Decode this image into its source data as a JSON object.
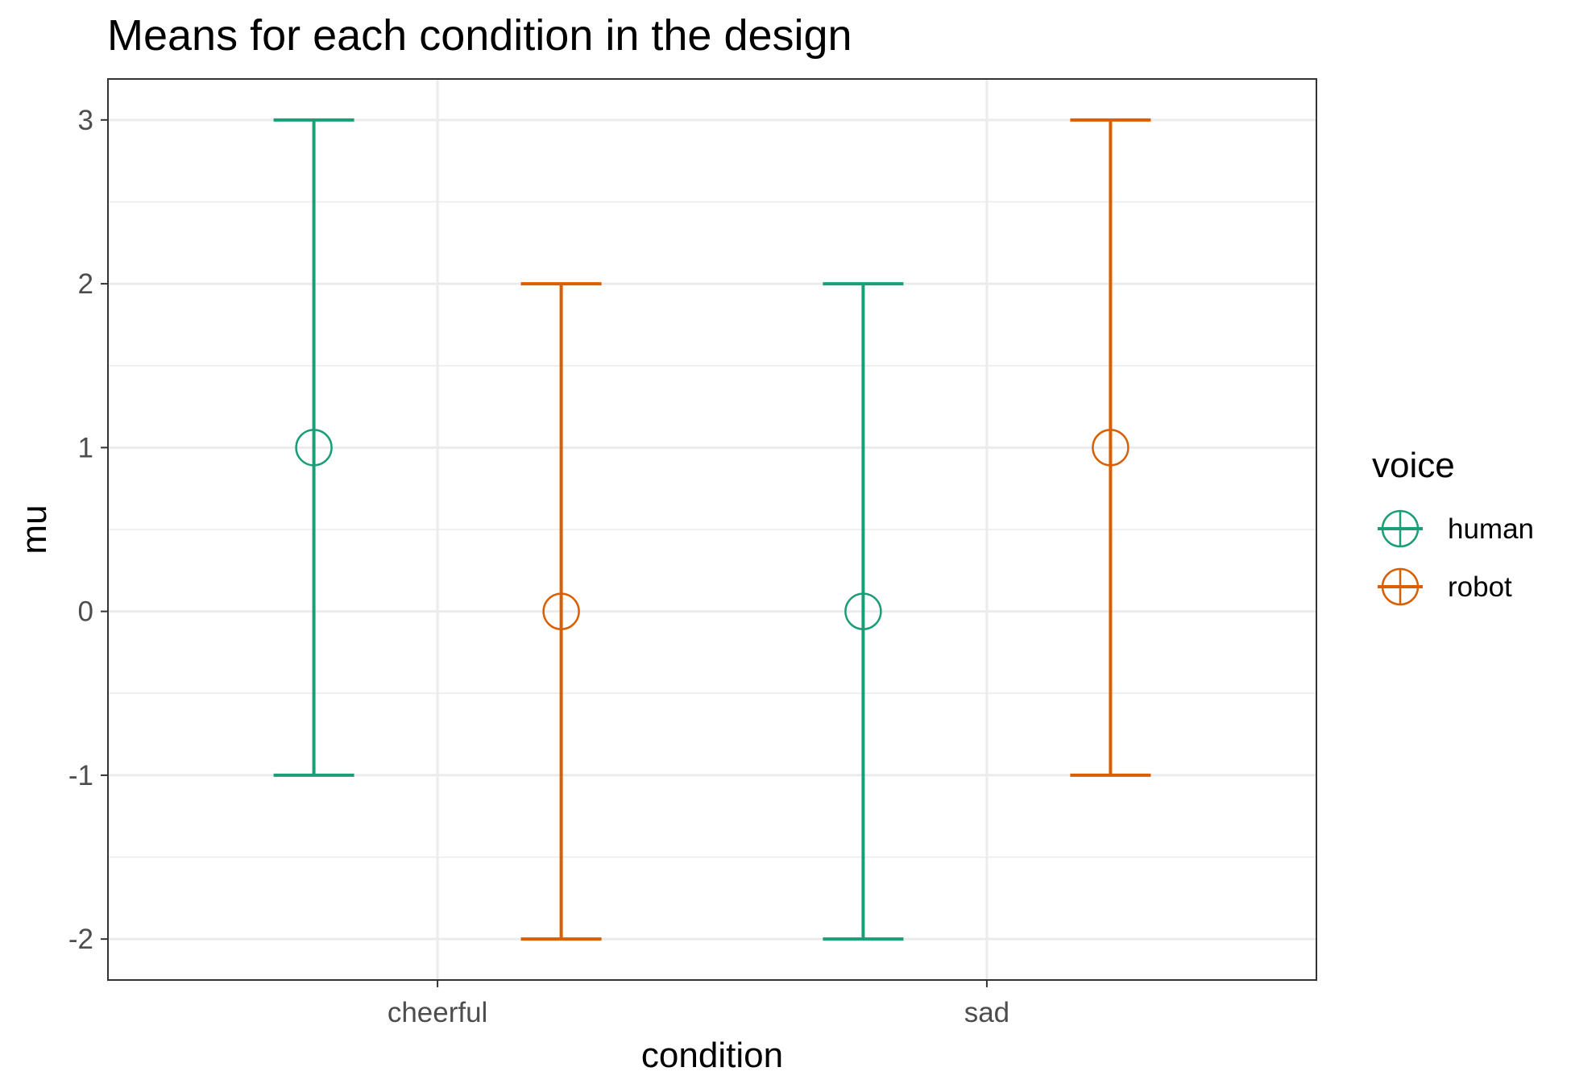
{
  "chart_data": {
    "type": "errorbar",
    "title": "Means for each condition in the design",
    "xlabel": "condition",
    "ylabel": "mu",
    "categories": [
      "cheerful",
      "sad"
    ],
    "ylim": [
      -2.25,
      3.25
    ],
    "yticks": [
      -2,
      -1,
      0,
      1,
      2,
      3
    ],
    "grid": true,
    "legend": {
      "title": "voice",
      "placement": "right"
    },
    "series": [
      {
        "name": "human",
        "color": "#1b9e77",
        "points": [
          {
            "category": "cheerful",
            "mean": 1,
            "lower": -1,
            "upper": 3
          },
          {
            "category": "sad",
            "mean": 0,
            "lower": -2,
            "upper": 2
          }
        ]
      },
      {
        "name": "robot",
        "color": "#d95f02",
        "points": [
          {
            "category": "cheerful",
            "mean": 0,
            "lower": -2,
            "upper": 2
          },
          {
            "category": "sad",
            "mean": 1,
            "lower": -1,
            "upper": 3
          }
        ]
      }
    ]
  }
}
